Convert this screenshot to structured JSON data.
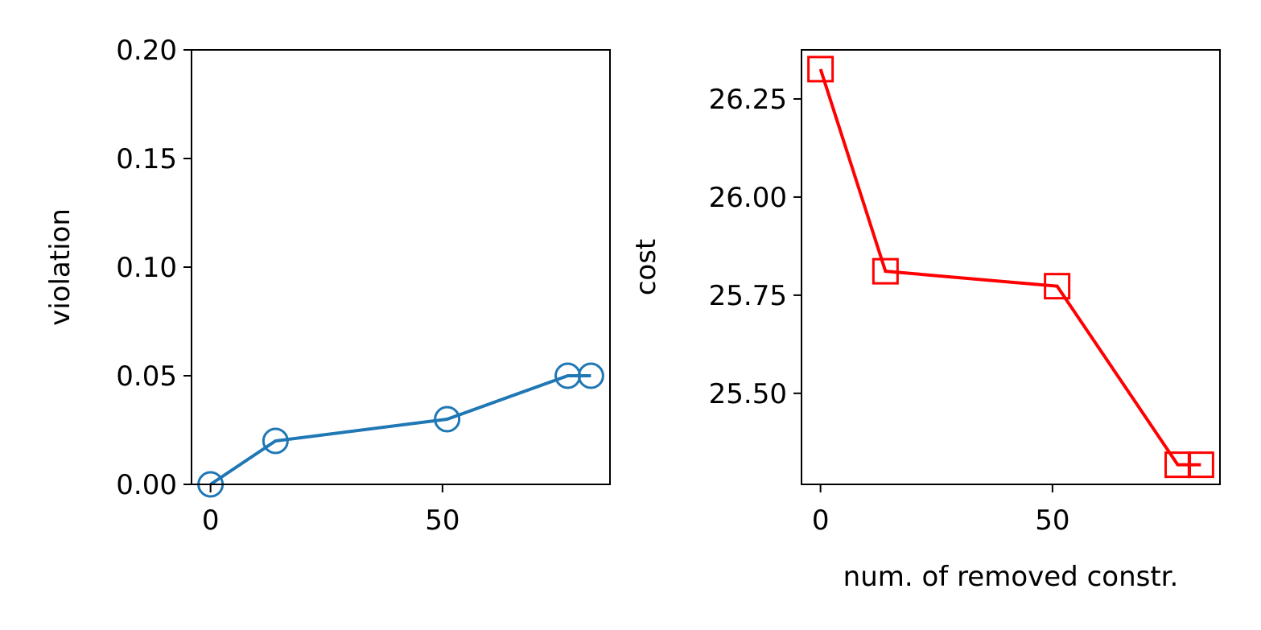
{
  "chart_data": [
    {
      "type": "line",
      "ylabel": "violation",
      "x": [
        0,
        14,
        51,
        77,
        82
      ],
      "series": [
        {
          "color": "#1f77b4",
          "marker": "circle",
          "values": [
            0,
            0.02,
            0.03,
            0.05,
            0.05
          ]
        }
      ],
      "xlim": [
        -4.1,
        86.1
      ],
      "xticks": [
        0,
        50
      ],
      "ylim": [
        0,
        0.2
      ],
      "yticks": [
        {
          "value": 0,
          "label": "0.00"
        },
        {
          "value": 0.05,
          "label": "0.05"
        },
        {
          "value": 0.1,
          "label": "0.10"
        },
        {
          "value": 0.15,
          "label": "0.15"
        },
        {
          "value": 0.2,
          "label": "0.20"
        }
      ]
    },
    {
      "type": "line",
      "ylabel": "cost",
      "xlabel": "num. of removed constr.",
      "x": [
        0,
        14,
        51,
        77,
        82
      ],
      "series": [
        {
          "color": "#ff0000",
          "marker": "square",
          "values": [
            26.326,
            25.811,
            25.773,
            25.318,
            25.318
          ]
        }
      ],
      "xlim": [
        -4.1,
        86.1
      ],
      "xticks": [
        0,
        50
      ],
      "ylim": [
        25.268,
        26.375
      ],
      "yticks": [
        {
          "value": 25.5,
          "label": "25.50"
        },
        25.75,
        {
          "value": 26,
          "label": "26.00"
        },
        26.25
      ]
    }
  ]
}
